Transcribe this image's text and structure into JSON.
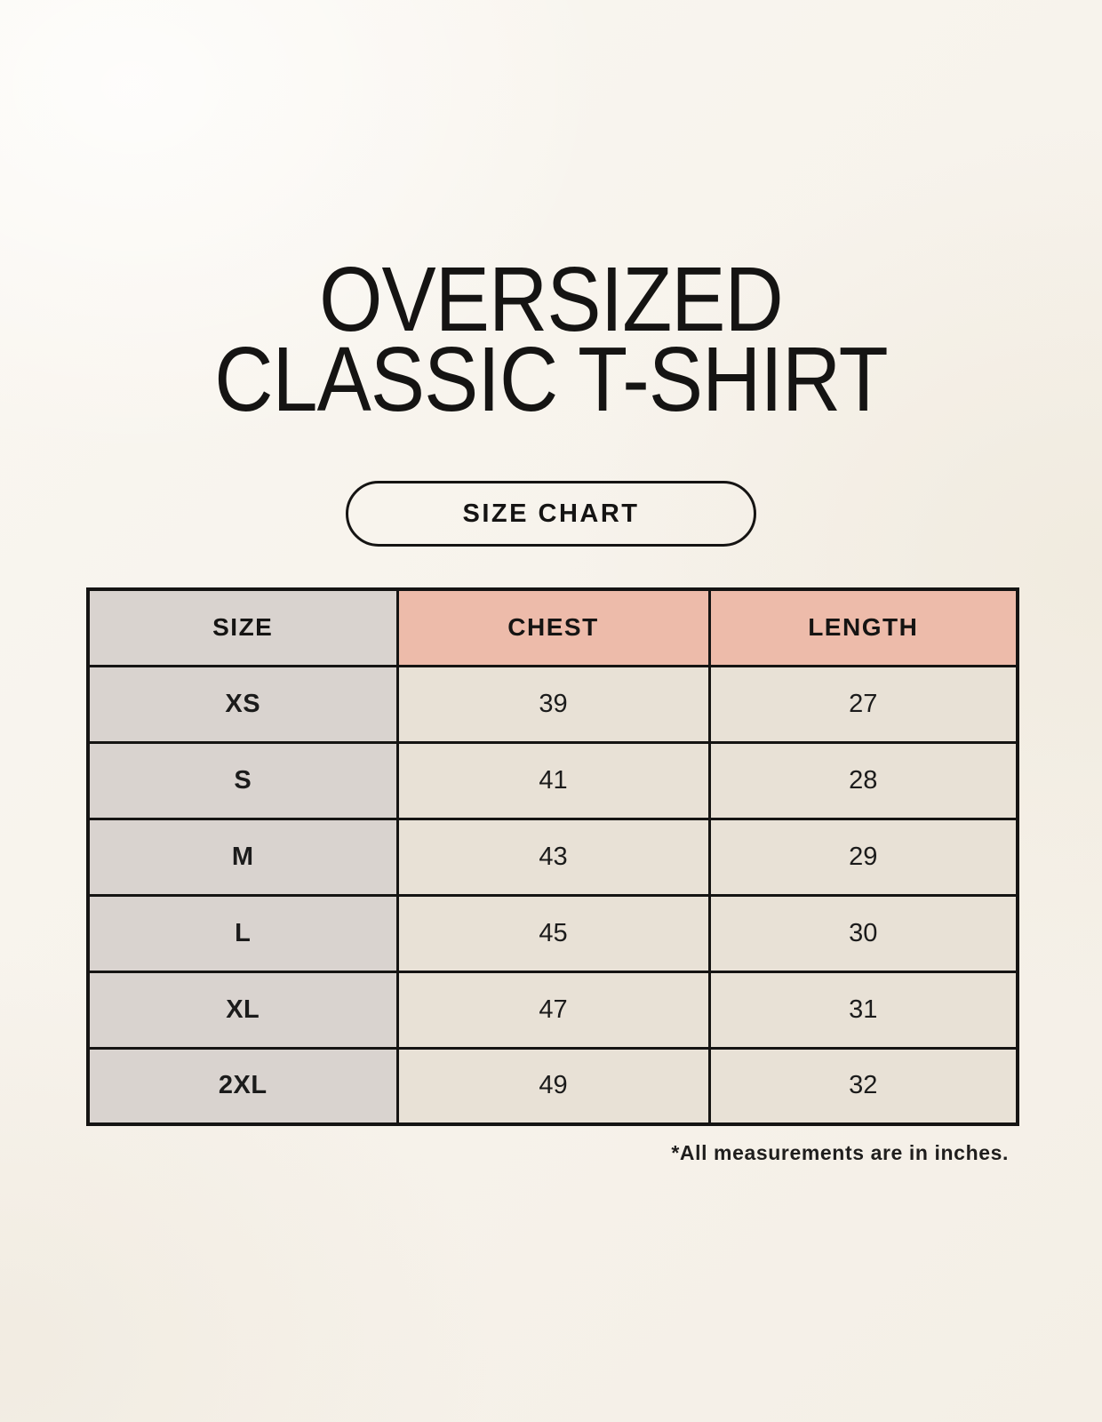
{
  "page": {
    "title_line1": "OVERSIZED",
    "title_line2": "CLASSIC T-SHIRT",
    "badge_label": "SIZE CHART",
    "footnote": "*All measurements are in inches."
  },
  "colors": {
    "background": "#f7f3ec",
    "header_pink": "#edbbaa",
    "size_column_gray": "#d9d3cf",
    "data_cell_cream": "#e8e1d6",
    "border_black": "#151413",
    "text": "#151413"
  },
  "chart_data": {
    "type": "table",
    "title": "OVERSIZED CLASSIC T-SHIRT",
    "columns": [
      "SIZE",
      "CHEST",
      "LENGTH"
    ],
    "rows": [
      [
        "XS",
        39,
        27
      ],
      [
        "S",
        41,
        28
      ],
      [
        "M",
        43,
        29
      ],
      [
        "L",
        45,
        30
      ],
      [
        "XL",
        47,
        31
      ],
      [
        "2XL",
        49,
        32
      ]
    ],
    "units_note": "*All measurements are in inches."
  }
}
